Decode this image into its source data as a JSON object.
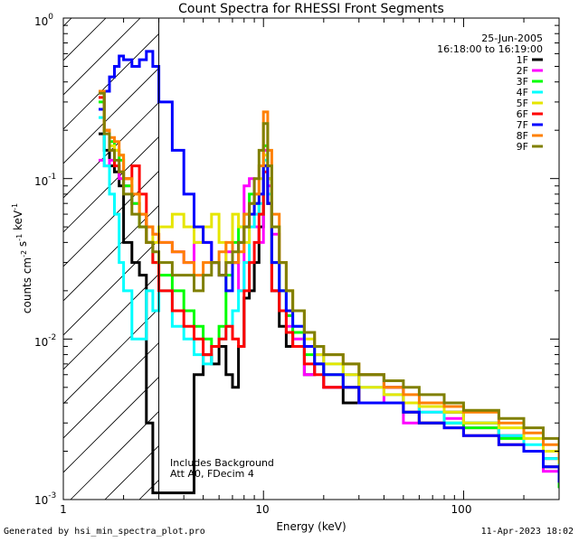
{
  "chart_data": {
    "type": "line",
    "title": "Count Spectra for RHESSI Front Segments",
    "xlabel": "Energy (keV)",
    "ylabel": "counts cm-2 s-1 keV-1",
    "xscale": "log",
    "yscale": "log",
    "xlim": [
      1,
      300
    ],
    "ylim": [
      0.001,
      1
    ],
    "x_tick_labels": [
      "1",
      "10",
      "100"
    ],
    "y_tick_labels": [
      {
        "base": "10",
        "exp": "0",
        "value": 1
      },
      {
        "base": "10",
        "exp": "-1",
        "value": 0.1
      },
      {
        "base": "10",
        "exp": "-2",
        "value": 0.01
      },
      {
        "base": "10",
        "exp": "-3",
        "value": 0.001
      }
    ],
    "header": {
      "date": "25-Jun-2005",
      "time_range": "16:18:00 to 16:19:00"
    },
    "annotations": [
      "Includes Background",
      "Att A0, FDecim 4"
    ],
    "hatched_region_keV": [
      1,
      3
    ],
    "series": [
      {
        "name": "1F",
        "color": "#000000",
        "x": [
          1.5,
          1.6,
          1.7,
          1.8,
          1.9,
          2.0,
          2.2,
          2.4,
          2.6,
          2.8,
          3.0,
          3.5,
          4.0,
          4.5,
          5.0,
          5.5,
          6.0,
          6.5,
          7.0,
          7.5,
          8.0,
          8.5,
          9.0,
          9.5,
          10.0,
          10.5,
          11.0,
          12.0,
          13.0,
          14.0,
          16.0,
          18.0,
          20.0,
          25.0,
          30.0,
          40.0,
          50.0,
          60.0,
          80.0,
          100.0,
          150.0,
          200.0,
          250.0,
          300.0
        ],
        "y": [
          0.19,
          0.15,
          0.12,
          0.11,
          0.09,
          0.04,
          0.03,
          0.025,
          0.003,
          0.0011,
          0.0011,
          0.0011,
          0.0011,
          0.006,
          0.008,
          0.007,
          0.009,
          0.006,
          0.005,
          0.009,
          0.018,
          0.02,
          0.03,
          0.05,
          0.12,
          0.07,
          0.02,
          0.012,
          0.009,
          0.011,
          0.006,
          0.007,
          0.005,
          0.004,
          0.006,
          0.005,
          0.004,
          0.003,
          0.0035,
          0.003,
          0.0025,
          0.002,
          0.0018,
          0.0015
        ]
      },
      {
        "name": "2F",
        "color": "#ff00ff",
        "x": [
          1.5,
          1.6,
          1.7,
          1.8,
          1.9,
          2.0,
          2.2,
          2.4,
          2.6,
          2.8,
          3.0,
          3.5,
          4.0,
          4.5,
          5.0,
          5.5,
          6.0,
          6.5,
          7.0,
          7.5,
          8.0,
          8.5,
          9.0,
          9.5,
          10.0,
          10.5,
          11.0,
          12.0,
          13.0,
          14.0,
          16.0,
          18.0,
          20.0,
          25.0,
          30.0,
          40.0,
          50.0,
          60.0,
          80.0,
          100.0,
          150.0,
          200.0,
          250.0,
          300.0
        ],
        "y": [
          0.13,
          0.12,
          0.13,
          0.12,
          0.1,
          0.09,
          0.07,
          0.06,
          0.05,
          0.045,
          0.04,
          0.035,
          0.03,
          0.04,
          0.04,
          0.03,
          0.025,
          0.035,
          0.03,
          0.02,
          0.09,
          0.1,
          0.05,
          0.04,
          0.15,
          0.09,
          0.045,
          0.02,
          0.012,
          0.01,
          0.006,
          0.008,
          0.005,
          0.006,
          0.004,
          0.005,
          0.003,
          0.0035,
          0.0032,
          0.0028,
          0.0025,
          0.002,
          0.0015,
          0.0012
        ]
      },
      {
        "name": "3F",
        "color": "#00ff00",
        "x": [
          1.5,
          1.6,
          1.7,
          1.8,
          1.9,
          2.0,
          2.2,
          2.4,
          2.6,
          2.8,
          3.0,
          3.5,
          4.0,
          4.5,
          5.0,
          5.5,
          6.0,
          6.5,
          7.0,
          7.5,
          8.0,
          8.5,
          9.0,
          9.5,
          10.0,
          10.5,
          11.0,
          12.0,
          13.0,
          14.0,
          16.0,
          18.0,
          20.0,
          25.0,
          30.0,
          40.0,
          50.0,
          60.0,
          80.0,
          100.0,
          150.0,
          200.0,
          250.0,
          300.0
        ],
        "y": [
          0.3,
          0.2,
          0.17,
          0.15,
          0.13,
          0.09,
          0.07,
          0.05,
          0.04,
          0.03,
          0.025,
          0.02,
          0.015,
          0.012,
          0.01,
          0.009,
          0.012,
          0.025,
          0.04,
          0.05,
          0.06,
          0.08,
          0.07,
          0.06,
          0.16,
          0.1,
          0.03,
          0.02,
          0.014,
          0.011,
          0.008,
          0.007,
          0.006,
          0.005,
          0.004,
          0.004,
          0.0035,
          0.003,
          0.003,
          0.0028,
          0.0024,
          0.002,
          0.0016,
          0.0012
        ]
      },
      {
        "name": "4F",
        "color": "#00ffff",
        "x": [
          1.5,
          1.6,
          1.7,
          1.8,
          1.9,
          2.0,
          2.2,
          2.4,
          2.6,
          2.8,
          3.0,
          3.5,
          4.0,
          4.5,
          5.0,
          5.5,
          6.0,
          6.5,
          7.0,
          7.5,
          8.0,
          8.5,
          9.0,
          9.5,
          10.0,
          10.5,
          11.0,
          12.0,
          13.0,
          14.0,
          16.0,
          18.0,
          20.0,
          25.0,
          30.0,
          40.0,
          50.0,
          60.0,
          80.0,
          100.0,
          150.0,
          200.0,
          250.0,
          300.0
        ],
        "y": [
          0.24,
          0.12,
          0.08,
          0.06,
          0.03,
          0.02,
          0.01,
          0.01,
          0.02,
          0.015,
          0.02,
          0.012,
          0.01,
          0.008,
          0.007,
          0.009,
          0.01,
          0.012,
          0.015,
          0.02,
          0.03,
          0.05,
          0.06,
          0.07,
          0.13,
          0.08,
          0.03,
          0.02,
          0.015,
          0.012,
          0.009,
          0.008,
          0.007,
          0.006,
          0.005,
          0.0045,
          0.004,
          0.0035,
          0.003,
          0.003,
          0.0025,
          0.0022,
          0.0018,
          0.0014
        ]
      },
      {
        "name": "5F",
        "color": "#e6e600",
        "x": [
          1.5,
          1.6,
          1.7,
          1.8,
          1.9,
          2.0,
          2.2,
          2.4,
          2.6,
          2.8,
          3.0,
          3.5,
          4.0,
          4.5,
          5.0,
          5.5,
          6.0,
          6.5,
          7.0,
          7.5,
          8.0,
          8.5,
          9.0,
          9.5,
          10.0,
          10.5,
          11.0,
          12.0,
          13.0,
          14.0,
          16.0,
          18.0,
          20.0,
          25.0,
          30.0,
          40.0,
          50.0,
          60.0,
          80.0,
          100.0,
          150.0,
          200.0,
          250.0,
          300.0
        ],
        "y": [
          0.35,
          0.2,
          0.16,
          0.15,
          0.14,
          0.1,
          0.08,
          0.06,
          0.05,
          0.04,
          0.05,
          0.06,
          0.05,
          0.04,
          0.05,
          0.06,
          0.04,
          0.03,
          0.06,
          0.05,
          0.04,
          0.06,
          0.08,
          0.1,
          0.14,
          0.1,
          0.05,
          0.03,
          0.02,
          0.015,
          0.01,
          0.008,
          0.007,
          0.006,
          0.005,
          0.0045,
          0.004,
          0.0038,
          0.0035,
          0.003,
          0.0028,
          0.0024,
          0.002,
          0.0017
        ]
      },
      {
        "name": "6F",
        "color": "#ff0000",
        "x": [
          1.5,
          1.6,
          1.7,
          1.8,
          1.9,
          2.0,
          2.2,
          2.4,
          2.6,
          2.8,
          3.0,
          3.5,
          4.0,
          4.5,
          5.0,
          5.5,
          6.0,
          6.5,
          7.0,
          7.5,
          8.0,
          8.5,
          9.0,
          9.5,
          10.0,
          10.5,
          11.0,
          12.0,
          13.0,
          14.0,
          16.0,
          18.0,
          20.0,
          25.0,
          30.0,
          40.0,
          50.0,
          60.0,
          80.0,
          100.0,
          150.0,
          200.0,
          250.0,
          300.0
        ],
        "y": [
          0.32,
          0.2,
          0.15,
          0.12,
          0.11,
          0.1,
          0.12,
          0.08,
          0.04,
          0.03,
          0.02,
          0.015,
          0.012,
          0.01,
          0.008,
          0.009,
          0.01,
          0.012,
          0.01,
          0.009,
          0.02,
          0.03,
          0.04,
          0.06,
          0.11,
          0.07,
          0.02,
          0.015,
          0.011,
          0.009,
          0.007,
          0.006,
          0.005,
          0.005,
          0.004,
          0.004,
          0.0035,
          0.003,
          0.0028,
          0.0025,
          0.0022,
          0.002,
          0.0016,
          0.0013
        ]
      },
      {
        "name": "7F",
        "color": "#0000ff",
        "x": [
          1.5,
          1.6,
          1.7,
          1.8,
          1.9,
          2.0,
          2.2,
          2.4,
          2.6,
          2.8,
          3.0,
          3.5,
          4.0,
          4.5,
          5.0,
          5.5,
          6.0,
          6.5,
          7.0,
          7.5,
          8.0,
          8.5,
          9.0,
          9.5,
          10.0,
          10.5,
          11.0,
          12.0,
          13.0,
          14.0,
          16.0,
          18.0,
          20.0,
          25.0,
          30.0,
          40.0,
          50.0,
          60.0,
          80.0,
          100.0,
          150.0,
          200.0,
          250.0,
          300.0
        ],
        "y": [
          0.27,
          0.35,
          0.43,
          0.5,
          0.58,
          0.55,
          0.5,
          0.55,
          0.62,
          0.5,
          0.3,
          0.15,
          0.08,
          0.05,
          0.04,
          0.03,
          0.025,
          0.02,
          0.03,
          0.04,
          0.05,
          0.06,
          0.07,
          0.08,
          0.12,
          0.07,
          0.03,
          0.02,
          0.015,
          0.012,
          0.009,
          0.007,
          0.006,
          0.005,
          0.004,
          0.004,
          0.0035,
          0.003,
          0.0028,
          0.0025,
          0.0022,
          0.002,
          0.0016,
          0.0013
        ]
      },
      {
        "name": "8F",
        "color": "#ff8000",
        "x": [
          1.5,
          1.6,
          1.7,
          1.8,
          1.9,
          2.0,
          2.2,
          2.4,
          2.6,
          2.8,
          3.0,
          3.5,
          4.0,
          4.5,
          5.0,
          5.5,
          6.0,
          6.5,
          7.0,
          7.5,
          8.0,
          8.5,
          9.0,
          9.5,
          10.0,
          10.5,
          11.0,
          12.0,
          13.0,
          14.0,
          16.0,
          18.0,
          20.0,
          25.0,
          30.0,
          40.0,
          50.0,
          60.0,
          80.0,
          100.0,
          150.0,
          200.0,
          250.0,
          300.0
        ],
        "y": [
          0.35,
          0.2,
          0.18,
          0.17,
          0.14,
          0.1,
          0.08,
          0.06,
          0.05,
          0.045,
          0.04,
          0.035,
          0.03,
          0.025,
          0.03,
          0.03,
          0.035,
          0.04,
          0.03,
          0.035,
          0.06,
          0.07,
          0.08,
          0.12,
          0.26,
          0.15,
          0.06,
          0.03,
          0.02,
          0.015,
          0.011,
          0.009,
          0.008,
          0.007,
          0.006,
          0.005,
          0.0045,
          0.004,
          0.0038,
          0.0035,
          0.003,
          0.0026,
          0.0022,
          0.0018
        ]
      },
      {
        "name": "9F",
        "color": "#808000",
        "x": [
          1.5,
          1.6,
          1.7,
          1.8,
          1.9,
          2.0,
          2.2,
          2.4,
          2.6,
          2.8,
          3.0,
          3.5,
          4.0,
          4.5,
          5.0,
          5.5,
          6.0,
          6.5,
          7.0,
          7.5,
          8.0,
          8.5,
          9.0,
          9.5,
          10.0,
          10.5,
          11.0,
          12.0,
          13.0,
          14.0,
          16.0,
          18.0,
          20.0,
          25.0,
          30.0,
          40.0,
          50.0,
          60.0,
          80.0,
          100.0,
          150.0,
          200.0,
          250.0,
          300.0
        ],
        "y": [
          0.34,
          0.19,
          0.15,
          0.13,
          0.11,
          0.08,
          0.06,
          0.05,
          0.04,
          0.035,
          0.03,
          0.025,
          0.025,
          0.02,
          0.025,
          0.03,
          0.025,
          0.03,
          0.035,
          0.04,
          0.05,
          0.07,
          0.1,
          0.15,
          0.22,
          0.12,
          0.05,
          0.03,
          0.02,
          0.015,
          0.011,
          0.009,
          0.008,
          0.007,
          0.006,
          0.0055,
          0.005,
          0.0045,
          0.004,
          0.0036,
          0.0032,
          0.0028,
          0.0024,
          0.002
        ]
      }
    ]
  },
  "footer": {
    "generated_by": "Generated by hsi_min_spectra_plot.pro",
    "timestamp": "11-Apr-2023 18:02"
  }
}
